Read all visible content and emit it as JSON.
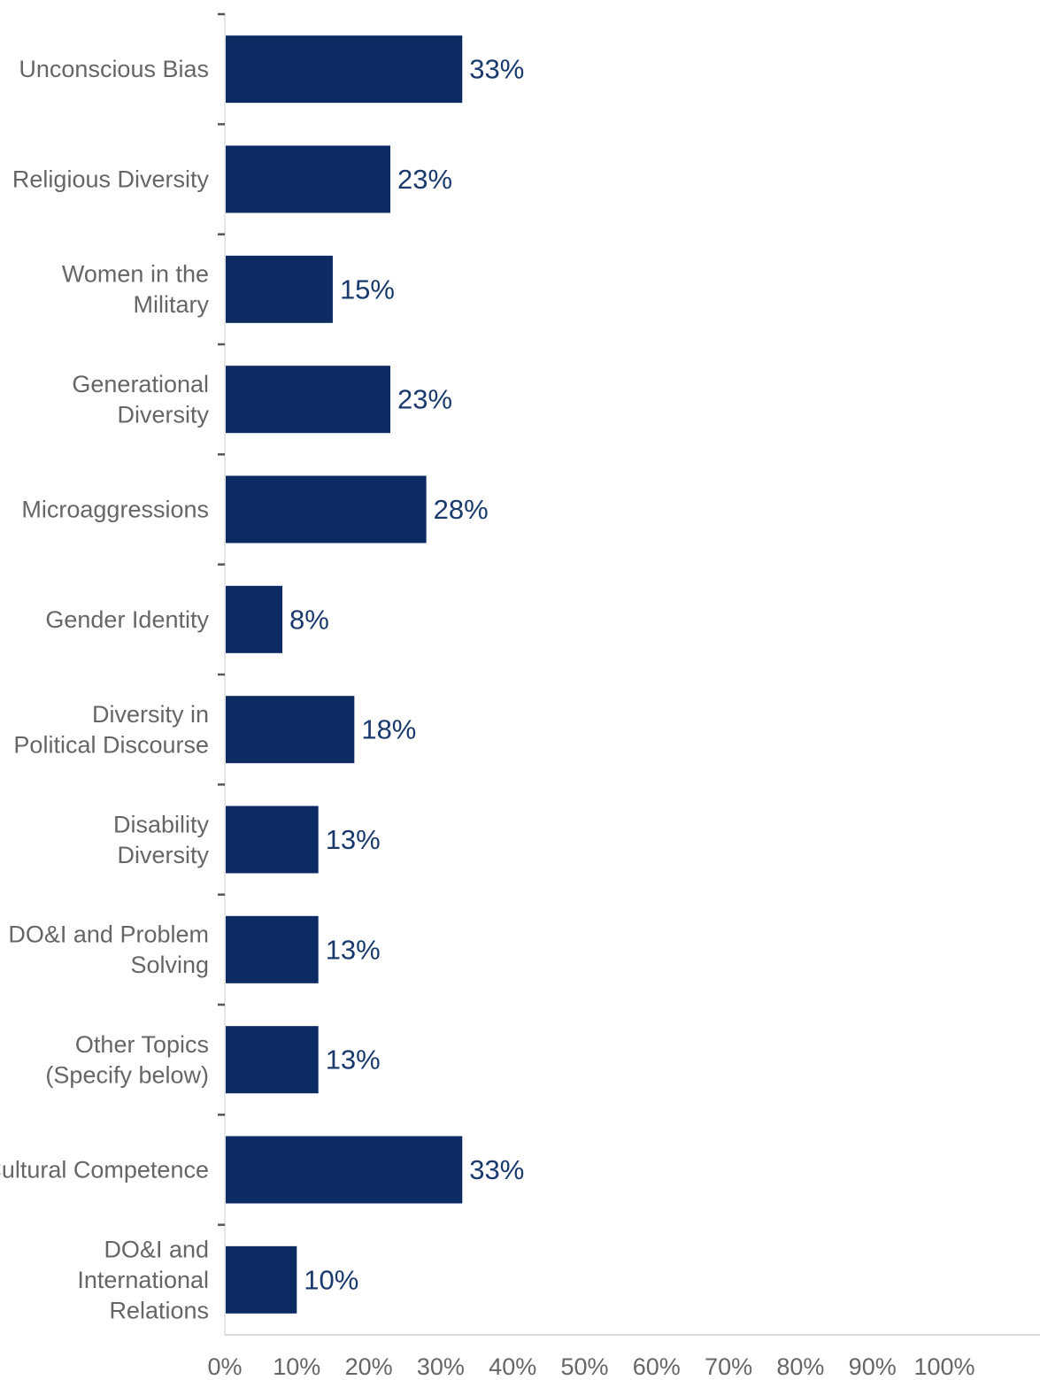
{
  "chart_data": {
    "type": "bar",
    "orientation": "horizontal",
    "title": "",
    "xlabel": "",
    "ylabel": "",
    "categories": [
      "Unconscious Bias",
      "Religious Diversity",
      "Women in the Military",
      "Generational Diversity",
      "Microaggressions",
      "Gender Identity",
      "Diversity in Political Discourse",
      "Disability Diversity",
      "DO&I and Problem Solving",
      "Other Topics (Specify below)",
      "Cultural Competence",
      "DO&I and International Relations"
    ],
    "category_lines": [
      [
        "Unconscious Bias"
      ],
      [
        "Religious Diversity"
      ],
      [
        "Women in the",
        "Military"
      ],
      [
        "Generational",
        "Diversity"
      ],
      [
        "Microaggressions"
      ],
      [
        "Gender Identity"
      ],
      [
        "Diversity in",
        "Political Discourse"
      ],
      [
        "Disability",
        "Diversity"
      ],
      [
        "DO&I and Problem",
        "Solving"
      ],
      [
        "Other Topics",
        "(Specify below)"
      ],
      [
        "Cultural Competence"
      ],
      [
        "DO&I and",
        "International",
        "Relations"
      ]
    ],
    "values": [
      33,
      23,
      15,
      23,
      28,
      8,
      18,
      13,
      13,
      13,
      33,
      10
    ],
    "data_labels": [
      "33%",
      "23%",
      "15%",
      "23%",
      "28%",
      "8%",
      "18%",
      "13%",
      "13%",
      "13%",
      "33%",
      "10%"
    ],
    "xlim": [
      0,
      100
    ],
    "xticks": [
      0,
      10,
      20,
      30,
      40,
      50,
      60,
      70,
      80,
      90,
      100
    ],
    "xtick_labels": [
      "0%",
      "10%",
      "20%",
      "30%",
      "40%",
      "50%",
      "60%",
      "70%",
      "80%",
      "90%",
      "100%"
    ],
    "grid": false,
    "legend": "none",
    "bar_color": "#0d2b63",
    "label_color": "#1a3a6e",
    "axis_color": "#555555"
  }
}
